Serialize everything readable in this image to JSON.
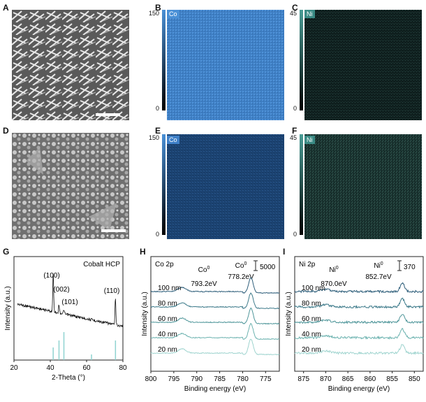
{
  "panels": {
    "A": "A",
    "B": "B",
    "C": "C",
    "D": "D",
    "E": "E",
    "F": "F",
    "G": "G",
    "H": "H",
    "I": "I"
  },
  "maps": {
    "co_label": "Co",
    "ni_label": "Ni",
    "co_max": "150",
    "ni_max": "45",
    "min": "0",
    "colors": {
      "co_top": "#4a90d6",
      "co_row2": "#1d4a7a",
      "ni": "#3a5e5a",
      "ni_dark": "#0d1a1a"
    }
  },
  "chart_data": [
    {
      "type": "line",
      "panel": "G",
      "annotation": "Cobalt HCP",
      "xlabel": "2-Theta (°)",
      "ylabel": "Intensity (a.u.)",
      "xlim": [
        20,
        80
      ],
      "xticks": [
        "20",
        "40",
        "60",
        "80"
      ],
      "peaks": [
        {
          "label": "(100)",
          "x": 41.6
        },
        {
          "label": "(002)",
          "x": 44.8
        },
        {
          "label": "(101)",
          "x": 47.5
        },
        {
          "label": "(110)",
          "x": 75.9
        }
      ],
      "reference_lines_x": [
        41.6,
        44.8,
        47.5,
        62.7,
        75.9
      ],
      "reference_color": "#8fd3d0"
    },
    {
      "type": "line",
      "panel": "H",
      "title": "Co 2p",
      "xlabel": "Binding energy (eV)",
      "ylabel": "Intensity (a.u.)",
      "xlim": [
        800,
        772
      ],
      "xticks": [
        "800",
        "795",
        "790",
        "785",
        "780",
        "775"
      ],
      "scalebar": "5000",
      "peaks": [
        {
          "label": "Co",
          "sup": "0",
          "energy": "793.2eV",
          "x": 793.2
        },
        {
          "label": "Co",
          "sup": "0",
          "energy": "778.2eV",
          "x": 778.2
        }
      ],
      "series": [
        {
          "name": "100 nm",
          "color": "#2e5e7a"
        },
        {
          "name": "80 nm",
          "color": "#3d7a8a"
        },
        {
          "name": "60 nm",
          "color": "#4f969a"
        },
        {
          "name": "40 nm",
          "color": "#6db3b0"
        },
        {
          "name": "20 nm",
          "color": "#9fd4cf"
        }
      ]
    },
    {
      "type": "line",
      "panel": "I",
      "title": "Ni 2p",
      "xlabel": "Binding energy (eV)",
      "ylabel": "Intensity (a.u.)",
      "xlim": [
        877,
        848
      ],
      "xticks": [
        "875",
        "870",
        "865",
        "860",
        "855",
        "850"
      ],
      "scalebar": "370",
      "peaks": [
        {
          "label": "Ni",
          "sup": "0",
          "energy": "870.0eV",
          "x": 870.0
        },
        {
          "label": "Ni",
          "sup": "0",
          "energy": "852.7eV",
          "x": 852.7
        }
      ],
      "series": [
        {
          "name": "100 nm",
          "color": "#2e5e7a"
        },
        {
          "name": "80 nm",
          "color": "#3d7a8a"
        },
        {
          "name": "60 nm",
          "color": "#4f969a"
        },
        {
          "name": "40 nm",
          "color": "#6db3b0"
        },
        {
          "name": "20 nm",
          "color": "#9fd4cf"
        }
      ]
    }
  ]
}
